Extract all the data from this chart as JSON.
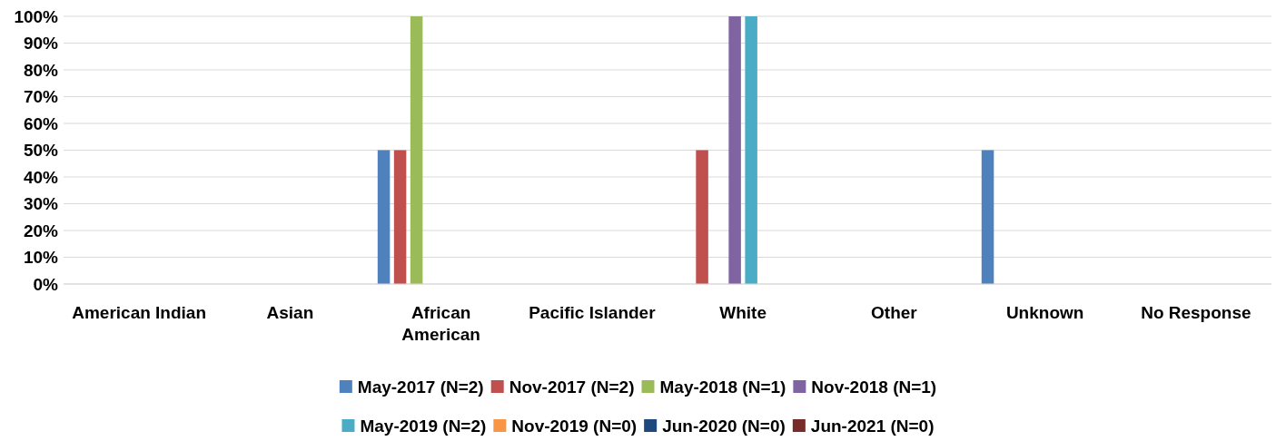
{
  "chart_data": {
    "type": "bar",
    "categories": [
      "American Indian",
      "Asian",
      "African American",
      "Pacific Islander",
      "White",
      "Other",
      "Unknown",
      "No Response"
    ],
    "series": [
      {
        "name": "May-2017 (N=2)",
        "color": "#4f81bd",
        "values": [
          0,
          0,
          50,
          0,
          0,
          0,
          50,
          0
        ]
      },
      {
        "name": "Nov-2017 (N=2)",
        "color": "#c0504d",
        "values": [
          0,
          0,
          50,
          0,
          50,
          0,
          0,
          0
        ]
      },
      {
        "name": "May-2018 (N=1)",
        "color": "#9bbb59",
        "values": [
          0,
          0,
          100,
          0,
          0,
          0,
          0,
          0
        ]
      },
      {
        "name": "Nov-2018 (N=1)",
        "color": "#8064a2",
        "values": [
          0,
          0,
          0,
          0,
          100,
          0,
          0,
          0
        ]
      },
      {
        "name": "May-2019 (N=2)",
        "color": "#4bacc6",
        "values": [
          0,
          0,
          0,
          0,
          100,
          0,
          0,
          0
        ]
      },
      {
        "name": "Nov-2019 (N=0)",
        "color": "#f79646",
        "values": [
          0,
          0,
          0,
          0,
          0,
          0,
          0,
          0
        ]
      },
      {
        "name": "Jun-2020 (N=0)",
        "color": "#1f497d",
        "values": [
          0,
          0,
          0,
          0,
          0,
          0,
          0,
          0
        ]
      },
      {
        "name": "Jun-2021 (N=0)",
        "color": "#772c2a",
        "values": [
          0,
          0,
          0,
          0,
          0,
          0,
          0,
          0
        ]
      }
    ],
    "ylim": [
      0,
      100
    ],
    "yticks": [
      {
        "value": 0,
        "label": "0%"
      },
      {
        "value": 10,
        "label": "10%"
      },
      {
        "value": 20,
        "label": "20%"
      },
      {
        "value": 30,
        "label": "30%"
      },
      {
        "value": 40,
        "label": "40%"
      },
      {
        "value": 50,
        "label": "50%"
      },
      {
        "value": 60,
        "label": "60%"
      },
      {
        "value": 70,
        "label": "70%"
      },
      {
        "value": 80,
        "label": "80%"
      },
      {
        "value": 90,
        "label": "90%"
      },
      {
        "value": 100,
        "label": "100%"
      }
    ],
    "grid": "y",
    "legend": "bottom"
  }
}
